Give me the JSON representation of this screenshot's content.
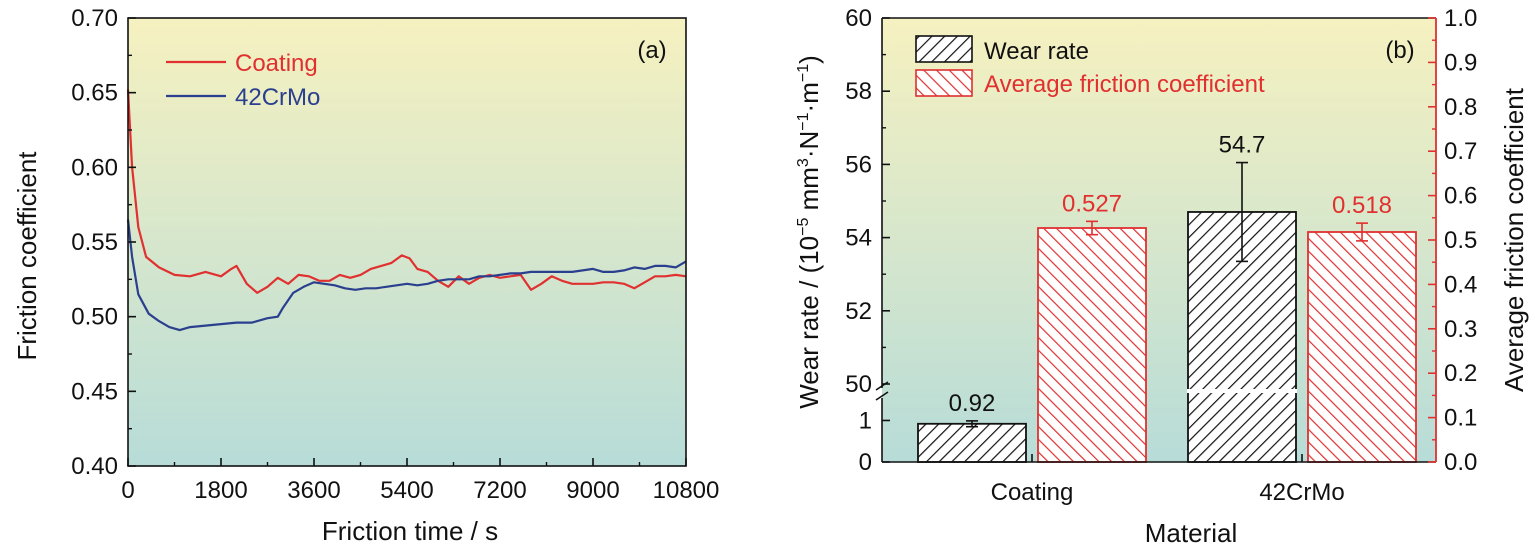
{
  "colors": {
    "coating": "#e03030",
    "steel": "#2b3f8f",
    "wear": "#111111",
    "friction": "#e03030",
    "bg_top": "#f6f1c0",
    "bg_bottom": "#b7dcd8"
  },
  "chart_data": [
    {
      "type": "line",
      "panel_label": "(a)",
      "xlabel": "Friction time / s",
      "ylabel": "Friction coefficient",
      "xlim": [
        0,
        10800
      ],
      "ylim": [
        0.4,
        0.7
      ],
      "x_ticks": [
        "0",
        "1800",
        "3600",
        "5400",
        "7200",
        "9000",
        "10800"
      ],
      "y_ticks": [
        "0.40",
        "0.45",
        "0.50",
        "0.55",
        "0.60",
        "0.65",
        "0.70"
      ],
      "legend_position": "top-left",
      "series": [
        {
          "name": "Coating",
          "color_key": "coating",
          "points": [
            [
              0,
              0.652
            ],
            [
              80,
              0.6
            ],
            [
              200,
              0.56
            ],
            [
              350,
              0.54
            ],
            [
              600,
              0.533
            ],
            [
              900,
              0.528
            ],
            [
              1200,
              0.527
            ],
            [
              1500,
              0.53
            ],
            [
              1800,
              0.527
            ],
            [
              2000,
              0.532
            ],
            [
              2100,
              0.534
            ],
            [
              2300,
              0.522
            ],
            [
              2500,
              0.516
            ],
            [
              2700,
              0.52
            ],
            [
              2900,
              0.526
            ],
            [
              3100,
              0.522
            ],
            [
              3300,
              0.528
            ],
            [
              3500,
              0.527
            ],
            [
              3700,
              0.524
            ],
            [
              3900,
              0.524
            ],
            [
              4100,
              0.528
            ],
            [
              4300,
              0.526
            ],
            [
              4500,
              0.528
            ],
            [
              4700,
              0.532
            ],
            [
              4900,
              0.534
            ],
            [
              5100,
              0.536
            ],
            [
              5300,
              0.541
            ],
            [
              5450,
              0.539
            ],
            [
              5600,
              0.532
            ],
            [
              5800,
              0.53
            ],
            [
              6000,
              0.524
            ],
            [
              6200,
              0.52
            ],
            [
              6400,
              0.527
            ],
            [
              6600,
              0.522
            ],
            [
              6800,
              0.526
            ],
            [
              7000,
              0.528
            ],
            [
              7200,
              0.526
            ],
            [
              7400,
              0.527
            ],
            [
              7600,
              0.528
            ],
            [
              7800,
              0.518
            ],
            [
              8000,
              0.522
            ],
            [
              8200,
              0.527
            ],
            [
              8400,
              0.524
            ],
            [
              8600,
              0.522
            ],
            [
              8800,
              0.522
            ],
            [
              9000,
              0.522
            ],
            [
              9200,
              0.523
            ],
            [
              9400,
              0.523
            ],
            [
              9600,
              0.522
            ],
            [
              9800,
              0.519
            ],
            [
              10000,
              0.523
            ],
            [
              10200,
              0.527
            ],
            [
              10400,
              0.527
            ],
            [
              10600,
              0.528
            ],
            [
              10800,
              0.527
            ]
          ]
        },
        {
          "name": "42CrMo",
          "color_key": "steel",
          "points": [
            [
              0,
              0.565
            ],
            [
              80,
              0.54
            ],
            [
              200,
              0.515
            ],
            [
              400,
              0.502
            ],
            [
              600,
              0.497
            ],
            [
              800,
              0.493
            ],
            [
              1000,
              0.491
            ],
            [
              1200,
              0.493
            ],
            [
              1500,
              0.494
            ],
            [
              1800,
              0.495
            ],
            [
              2100,
              0.496
            ],
            [
              2400,
              0.496
            ],
            [
              2700,
              0.499
            ],
            [
              2900,
              0.5
            ],
            [
              3000,
              0.506
            ],
            [
              3200,
              0.516
            ],
            [
              3400,
              0.52
            ],
            [
              3600,
              0.523
            ],
            [
              3800,
              0.522
            ],
            [
              4000,
              0.521
            ],
            [
              4200,
              0.519
            ],
            [
              4400,
              0.518
            ],
            [
              4600,
              0.519
            ],
            [
              4800,
              0.519
            ],
            [
              5000,
              0.52
            ],
            [
              5200,
              0.521
            ],
            [
              5400,
              0.522
            ],
            [
              5600,
              0.521
            ],
            [
              5800,
              0.522
            ],
            [
              6000,
              0.524
            ],
            [
              6200,
              0.525
            ],
            [
              6400,
              0.525
            ],
            [
              6600,
              0.525
            ],
            [
              6800,
              0.527
            ],
            [
              7000,
              0.527
            ],
            [
              7200,
              0.528
            ],
            [
              7400,
              0.529
            ],
            [
              7600,
              0.529
            ],
            [
              7800,
              0.53
            ],
            [
              8000,
              0.53
            ],
            [
              8200,
              0.53
            ],
            [
              8400,
              0.53
            ],
            [
              8600,
              0.53
            ],
            [
              8800,
              0.531
            ],
            [
              9000,
              0.532
            ],
            [
              9200,
              0.53
            ],
            [
              9400,
              0.53
            ],
            [
              9600,
              0.531
            ],
            [
              9800,
              0.533
            ],
            [
              10000,
              0.532
            ],
            [
              10200,
              0.534
            ],
            [
              10400,
              0.534
            ],
            [
              10600,
              0.533
            ],
            [
              10800,
              0.537
            ]
          ]
        }
      ]
    },
    {
      "type": "bar",
      "panel_label": "(b)",
      "xlabel": "Material",
      "ylabel_left": "Wear rate / (10",
      "ylabel_left_sup": "−5",
      "ylabel_left_units": " mm",
      "ylabel_left_sup2": "3",
      "ylabel_left_tail": "·N",
      "ylabel_left_sup3": "−1",
      "ylabel_left_tail2": "·m",
      "ylabel_left_sup4": "−1",
      "ylabel_left_close": ")",
      "ylabel_right": "Average friction coefficient",
      "categories": [
        "Coating",
        "42CrMo"
      ],
      "left_ticks_low": [
        "0",
        "1"
      ],
      "left_ticks_high": [
        "50",
        "52",
        "54",
        "56",
        "58",
        "60"
      ],
      "right_ticks": [
        "0.0",
        "0.1",
        "0.2",
        "0.3",
        "0.4",
        "0.5",
        "0.6",
        "0.7",
        "0.8",
        "0.9",
        "1.0"
      ],
      "y_left_break": {
        "lower_range": [
          0,
          1.3
        ],
        "upper_range": [
          50,
          60
        ]
      },
      "y_right_lim": [
        0,
        1.0
      ],
      "legend_position": "top-left",
      "series": [
        {
          "name": "Wear rate",
          "axis": "left",
          "color_key": "wear",
          "values": [
            0.92,
            54.7
          ],
          "errors": [
            0.07,
            1.35
          ],
          "labels": [
            "0.92",
            "54.7"
          ]
        },
        {
          "name": "Average friction coefficient",
          "axis": "right",
          "color_key": "friction",
          "values": [
            0.527,
            0.518
          ],
          "errors": [
            0.015,
            0.02
          ],
          "labels": [
            "0.527",
            "0.518"
          ]
        }
      ]
    }
  ]
}
